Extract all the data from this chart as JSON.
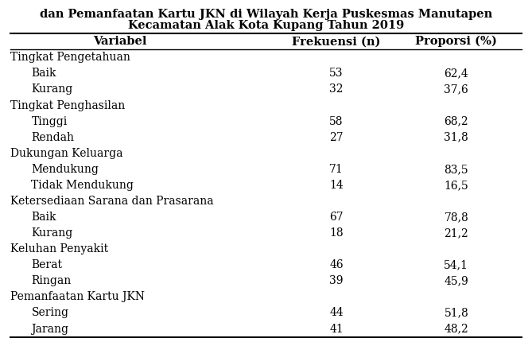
{
  "title_line1": "dan Pemanfaatan Kartu JKN di Wilayah Kerja Puskesmas Manutapen",
  "title_line2": "Kecamatan Alak Kota Kupang Tahun 2019",
  "col_headers": [
    "Variabel",
    "Frekuensi (n)",
    "Proporsi (%)"
  ],
  "rows": [
    {
      "label": "Tingkat Pengetahuan",
      "indent": false,
      "freq": "",
      "prop": ""
    },
    {
      "label": "Baik",
      "indent": true,
      "freq": "53",
      "prop": "62,4"
    },
    {
      "label": "Kurang",
      "indent": true,
      "freq": "32",
      "prop": "37,6"
    },
    {
      "label": "Tingkat Penghasilan",
      "indent": false,
      "freq": "",
      "prop": ""
    },
    {
      "label": "Tinggi",
      "indent": true,
      "freq": "58",
      "prop": "68,2"
    },
    {
      "label": "Rendah",
      "indent": true,
      "freq": "27",
      "prop": "31,8"
    },
    {
      "label": "Dukungan Keluarga",
      "indent": false,
      "freq": "",
      "prop": ""
    },
    {
      "label": "Mendukung",
      "indent": true,
      "freq": "71",
      "prop": "83,5"
    },
    {
      "label": "Tidak Mendukung",
      "indent": true,
      "freq": "14",
      "prop": "16,5"
    },
    {
      "label": "Ketersediaan Sarana dan Prasarana",
      "indent": false,
      "freq": "",
      "prop": ""
    },
    {
      "label": "Baik",
      "indent": true,
      "freq": "67",
      "prop": "78,8"
    },
    {
      "label": "Kurang",
      "indent": true,
      "freq": "18",
      "prop": "21,2"
    },
    {
      "label": "Keluhan Penyakit",
      "indent": false,
      "freq": "",
      "prop": ""
    },
    {
      "label": "Berat",
      "indent": true,
      "freq": "46",
      "prop": "54,1"
    },
    {
      "label": "Ringan",
      "indent": true,
      "freq": "39",
      "prop": "45,9"
    },
    {
      "label": "Pemanfaatan Kartu JKN",
      "indent": false,
      "freq": "",
      "prop": ""
    },
    {
      "label": "Sering",
      "indent": true,
      "freq": "44",
      "prop": "51,8"
    },
    {
      "label": "Jarang",
      "indent": true,
      "freq": "41",
      "prop": "48,2"
    }
  ],
  "bg_color": "#ffffff",
  "text_color": "#000000",
  "font_size": 10.0,
  "header_font_size": 10.5,
  "title_font_size": 10.5
}
